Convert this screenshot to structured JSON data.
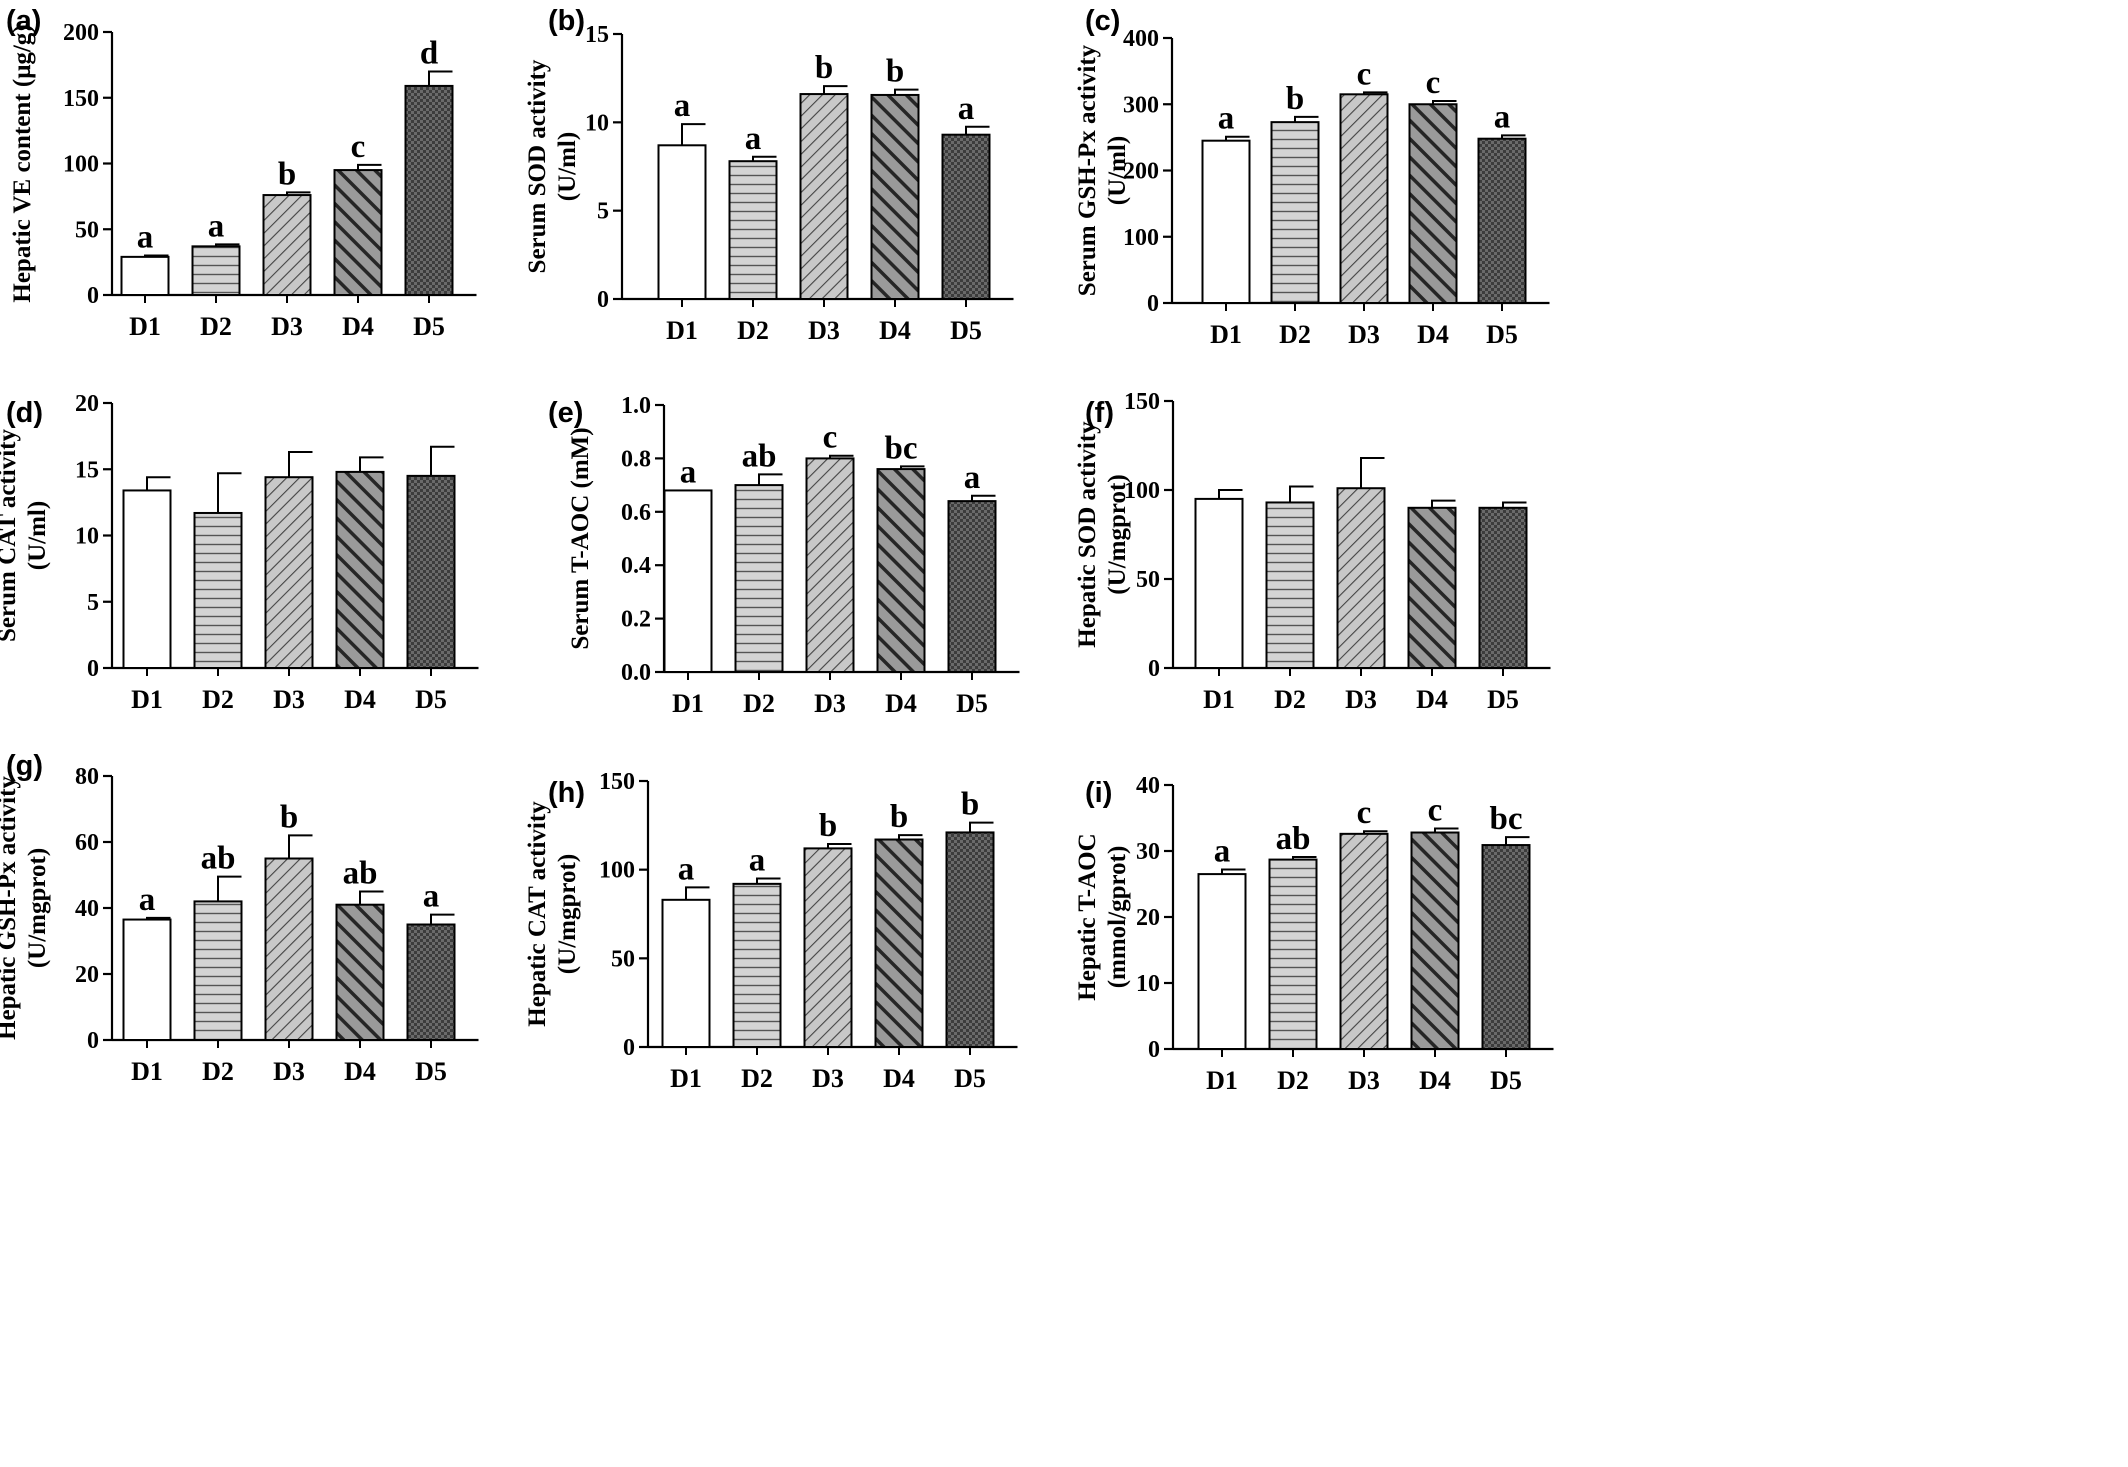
{
  "chart_data": [
    {
      "type": "bar",
      "panel_label": "(a)",
      "ylabel_lines": [
        "Hepatic VE content (μg/g)"
      ],
      "categories": [
        "D1",
        "D2",
        "D3",
        "D4",
        "D5"
      ],
      "values": [
        29,
        37,
        76,
        95,
        159
      ],
      "errors": [
        1,
        1.5,
        2,
        4,
        11
      ],
      "significance": [
        "a",
        "a",
        "b",
        "c",
        "d"
      ],
      "yticks": [
        0,
        50,
        100,
        150,
        200
      ],
      "ylim": [
        0,
        200
      ]
    },
    {
      "type": "bar",
      "panel_label": "(b)",
      "ylabel_lines": [
        "Serum SOD activity",
        "(U/ml)"
      ],
      "categories": [
        "D1",
        "D2",
        "D3",
        "D4",
        "D5"
      ],
      "values": [
        8.7,
        7.8,
        11.6,
        11.55,
        9.3
      ],
      "errors": [
        1.2,
        0.25,
        0.45,
        0.3,
        0.45
      ],
      "significance": [
        "a",
        "a",
        "b",
        "b",
        "a"
      ],
      "yticks": [
        0,
        5,
        10,
        15
      ],
      "ylim": [
        0,
        15
      ]
    },
    {
      "type": "bar",
      "panel_label": "(c)",
      "ylabel_lines": [
        "Serum GSH-Px activity",
        "(U/ml)"
      ],
      "categories": [
        "D1",
        "D2",
        "D3",
        "D4",
        "D5"
      ],
      "values": [
        245,
        273,
        315,
        300,
        248
      ],
      "errors": [
        6,
        8,
        3,
        5,
        5
      ],
      "significance": [
        "a",
        "b",
        "c",
        "c",
        "a"
      ],
      "yticks": [
        0,
        100,
        200,
        300,
        400
      ],
      "ylim": [
        0,
        400
      ]
    },
    {
      "type": "bar",
      "panel_label": "(d)",
      "ylabel_lines": [
        "Serum CAT activity",
        "(U/ml)"
      ],
      "categories": [
        "D1",
        "D2",
        "D3",
        "D4",
        "D5"
      ],
      "values": [
        13.4,
        11.7,
        14.4,
        14.8,
        14.5
      ],
      "errors": [
        1.0,
        3.0,
        1.9,
        1.1,
        2.2
      ],
      "significance": [
        "",
        "",
        "",
        "",
        ""
      ],
      "yticks": [
        0,
        5,
        10,
        15,
        20
      ],
      "ylim": [
        0,
        20
      ]
    },
    {
      "type": "bar",
      "panel_label": "(e)",
      "ylabel_lines": [
        "Serum T-AOC  (mM)"
      ],
      "categories": [
        "D1",
        "D2",
        "D3",
        "D4",
        "D5"
      ],
      "values": [
        0.68,
        0.7,
        0.8,
        0.76,
        0.64
      ],
      "errors": [
        0,
        0.04,
        0.01,
        0.01,
        0.02
      ],
      "significance": [
        "a",
        "ab",
        "c",
        "bc",
        "a"
      ],
      "yticks": [
        0.0,
        0.2,
        0.4,
        0.6,
        0.8,
        1.0
      ],
      "ytick_labels": [
        "0.0",
        "0.2",
        "0.4",
        "0.6",
        "0.8",
        "1.0"
      ],
      "ylim": [
        0,
        1.0
      ]
    },
    {
      "type": "bar",
      "panel_label": "(f)",
      "ylabel_lines": [
        "Hepatic SOD activity",
        "(U/mgprot)"
      ],
      "categories": [
        "D1",
        "D2",
        "D3",
        "D4",
        "D5"
      ],
      "values": [
        95,
        93,
        101,
        90,
        90
      ],
      "errors": [
        5,
        9,
        17,
        4,
        3
      ],
      "significance": [
        "",
        "",
        "",
        "",
        ""
      ],
      "yticks": [
        0,
        50,
        100,
        150
      ],
      "ylim": [
        0,
        150
      ]
    },
    {
      "type": "bar",
      "panel_label": "(g)",
      "ylabel_lines": [
        "Hepatic GSH-Px activity",
        "(U/mgprot)"
      ],
      "categories": [
        "D1",
        "D2",
        "D3",
        "D4",
        "D5"
      ],
      "values": [
        36.5,
        42,
        55,
        41,
        35
      ],
      "errors": [
        0.5,
        7.5,
        7,
        4,
        3
      ],
      "significance": [
        "a",
        "ab",
        "b",
        "ab",
        "a"
      ],
      "yticks": [
        0,
        20,
        40,
        60,
        80
      ],
      "ylim": [
        0,
        80
      ]
    },
    {
      "type": "bar",
      "panel_label": "(h)",
      "ylabel_lines": [
        "Hepatic CAT activity",
        "(U/mgprot)"
      ],
      "categories": [
        "D1",
        "D2",
        "D3",
        "D4",
        "D5"
      ],
      "values": [
        83,
        92,
        112,
        117,
        121
      ],
      "errors": [
        7,
        3,
        2.5,
        2.5,
        5.5
      ],
      "significance": [
        "a",
        "a",
        "b",
        "b",
        "b"
      ],
      "yticks": [
        0,
        50,
        100,
        150
      ],
      "ylim": [
        0,
        150
      ]
    },
    {
      "type": "bar",
      "panel_label": "(i)",
      "ylabel_lines": [
        "Hepatic T-AOC",
        "(mmol/gprot)"
      ],
      "categories": [
        "D1",
        "D2",
        "D3",
        "D4",
        "D5"
      ],
      "values": [
        26.5,
        28.7,
        32.6,
        32.8,
        30.9
      ],
      "errors": [
        0.7,
        0.4,
        0.4,
        0.6,
        1.2
      ],
      "significance": [
        "a",
        "ab",
        "c",
        "c",
        "bc"
      ],
      "yticks": [
        0,
        10,
        20,
        30,
        40
      ],
      "ylim": [
        0,
        40
      ]
    }
  ],
  "pattern_names": [
    "open-white",
    "horizontal-lines",
    "diagonal-thin",
    "diagonal-thick",
    "crosshatch-dark"
  ]
}
